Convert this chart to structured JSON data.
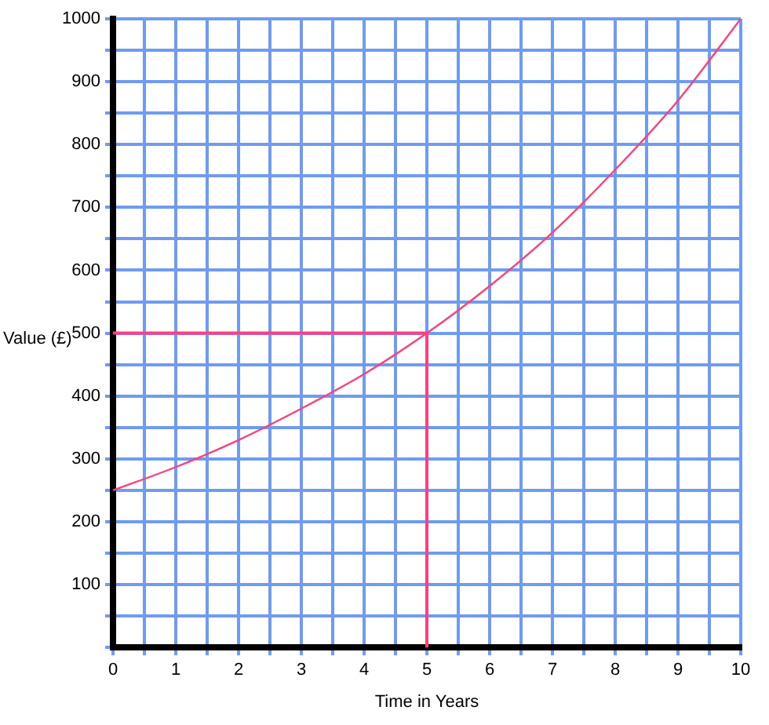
{
  "chart_data": {
    "type": "line",
    "xlabel": "Time in Years",
    "ylabel": "Value (£)",
    "xlim": [
      0,
      10
    ],
    "ylim": [
      0,
      1000
    ],
    "xticks": [
      0,
      {
        "value": 0.5,
        "label": null
      },
      1,
      {
        "value": 1.5,
        "label": null
      },
      2,
      {
        "value": 2.5,
        "label": null
      },
      3,
      {
        "value": 3.5,
        "label": null
      },
      4,
      {
        "value": 4.5,
        "label": null
      },
      5,
      {
        "value": 5.5,
        "label": null
      },
      6,
      {
        "value": 6.5,
        "label": null
      },
      7,
      {
        "value": 7.5,
        "label": null
      },
      8,
      {
        "value": 8.5,
        "label": null
      },
      9,
      {
        "value": 9.5,
        "label": null
      },
      10
    ],
    "yticks": [
      {
        "value": 0,
        "label": null
      },
      {
        "value": 50,
        "label": null
      },
      100,
      {
        "value": 150,
        "label": null
      },
      200,
      {
        "value": 250,
        "label": null
      },
      300,
      {
        "value": 350,
        "label": null
      },
      400,
      {
        "value": 450,
        "label": null
      },
      500,
      {
        "value": 550,
        "label": null
      },
      600,
      {
        "value": 650,
        "label": null
      },
      700,
      {
        "value": 750,
        "label": null
      },
      800,
      {
        "value": 850,
        "label": null
      },
      900,
      {
        "value": 950,
        "label": null
      },
      1000
    ],
    "grid": true,
    "legend": false,
    "marker": "none",
    "line_style": "solid",
    "series": [
      {
        "color": "#ff3f7f",
        "x": [
          0,
          1,
          2,
          3,
          4,
          5,
          6,
          7,
          8,
          9,
          10
        ],
        "values": [
          250,
          287,
          330,
          380,
          435,
          500,
          575,
          660,
          760,
          870,
          1000
        ]
      },
      {
        "color": "#ff3f7f",
        "x": [
          0,
          5,
          5
        ],
        "values": [
          500,
          500,
          0
        ]
      }
    ]
  }
}
